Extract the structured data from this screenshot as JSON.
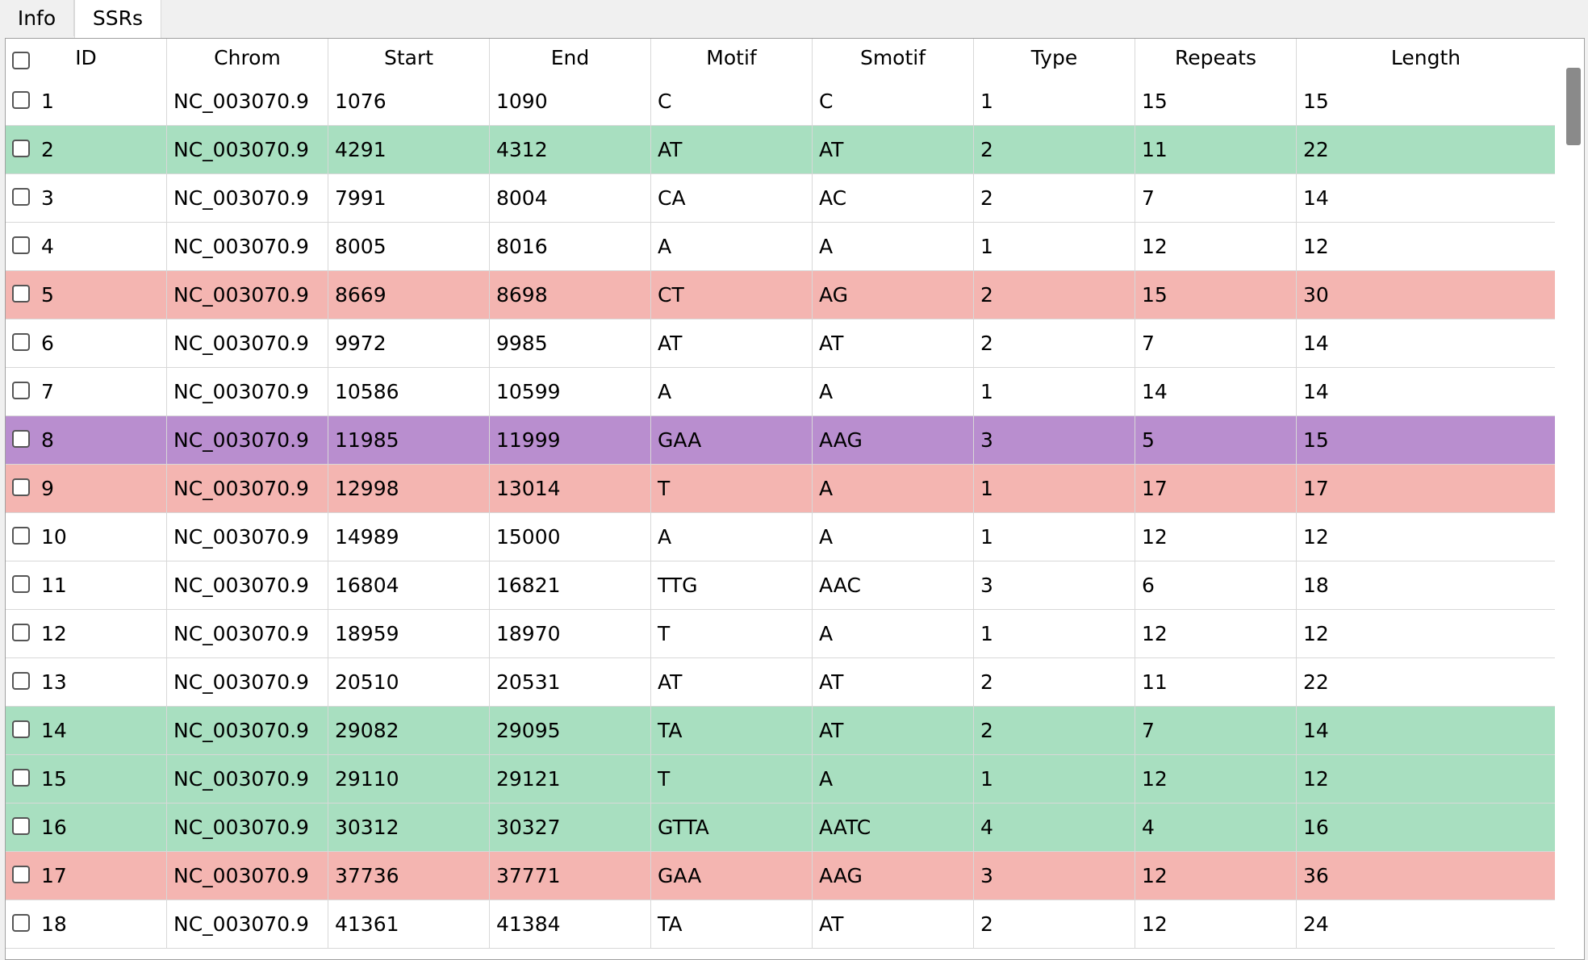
{
  "tabs": [
    {
      "label": "Info",
      "active": false
    },
    {
      "label": "SSRs",
      "active": true
    }
  ],
  "table": {
    "columns": [
      "ID",
      "Chrom",
      "Start",
      "End",
      "Motif",
      "Smotif",
      "Type",
      "Repeats",
      "Length"
    ],
    "sorted_column": "ID",
    "row_colors": {
      "white": "#ffffff",
      "green": "#a8dfc0",
      "red": "#f4b5b1",
      "purple": "#b98ecf"
    },
    "rows": [
      {
        "id": "1",
        "chrom": "NC_003070.9",
        "start": "1076",
        "end": "1090",
        "motif": "C",
        "smotif": "C",
        "type": "1",
        "repeats": "15",
        "length": "15",
        "color": "white"
      },
      {
        "id": "2",
        "chrom": "NC_003070.9",
        "start": "4291",
        "end": "4312",
        "motif": "AT",
        "smotif": "AT",
        "type": "2",
        "repeats": "11",
        "length": "22",
        "color": "green"
      },
      {
        "id": "3",
        "chrom": "NC_003070.9",
        "start": "7991",
        "end": "8004",
        "motif": "CA",
        "smotif": "AC",
        "type": "2",
        "repeats": "7",
        "length": "14",
        "color": "white"
      },
      {
        "id": "4",
        "chrom": "NC_003070.9",
        "start": "8005",
        "end": "8016",
        "motif": "A",
        "smotif": "A",
        "type": "1",
        "repeats": "12",
        "length": "12",
        "color": "white"
      },
      {
        "id": "5",
        "chrom": "NC_003070.9",
        "start": "8669",
        "end": "8698",
        "motif": "CT",
        "smotif": "AG",
        "type": "2",
        "repeats": "15",
        "length": "30",
        "color": "red"
      },
      {
        "id": "6",
        "chrom": "NC_003070.9",
        "start": "9972",
        "end": "9985",
        "motif": "AT",
        "smotif": "AT",
        "type": "2",
        "repeats": "7",
        "length": "14",
        "color": "white"
      },
      {
        "id": "7",
        "chrom": "NC_003070.9",
        "start": "10586",
        "end": "10599",
        "motif": "A",
        "smotif": "A",
        "type": "1",
        "repeats": "14",
        "length": "14",
        "color": "white"
      },
      {
        "id": "8",
        "chrom": "NC_003070.9",
        "start": "11985",
        "end": "11999",
        "motif": "GAA",
        "smotif": "AAG",
        "type": "3",
        "repeats": "5",
        "length": "15",
        "color": "purple"
      },
      {
        "id": "9",
        "chrom": "NC_003070.9",
        "start": "12998",
        "end": "13014",
        "motif": "T",
        "smotif": "A",
        "type": "1",
        "repeats": "17",
        "length": "17",
        "color": "red"
      },
      {
        "id": "10",
        "chrom": "NC_003070.9",
        "start": "14989",
        "end": "15000",
        "motif": "A",
        "smotif": "A",
        "type": "1",
        "repeats": "12",
        "length": "12",
        "color": "white"
      },
      {
        "id": "11",
        "chrom": "NC_003070.9",
        "start": "16804",
        "end": "16821",
        "motif": "TTG",
        "smotif": "AAC",
        "type": "3",
        "repeats": "6",
        "length": "18",
        "color": "white"
      },
      {
        "id": "12",
        "chrom": "NC_003070.9",
        "start": "18959",
        "end": "18970",
        "motif": "T",
        "smotif": "A",
        "type": "1",
        "repeats": "12",
        "length": "12",
        "color": "white"
      },
      {
        "id": "13",
        "chrom": "NC_003070.9",
        "start": "20510",
        "end": "20531",
        "motif": "AT",
        "smotif": "AT",
        "type": "2",
        "repeats": "11",
        "length": "22",
        "color": "white"
      },
      {
        "id": "14",
        "chrom": "NC_003070.9",
        "start": "29082",
        "end": "29095",
        "motif": "TA",
        "smotif": "AT",
        "type": "2",
        "repeats": "7",
        "length": "14",
        "color": "green"
      },
      {
        "id": "15",
        "chrom": "NC_003070.9",
        "start": "29110",
        "end": "29121",
        "motif": "T",
        "smotif": "A",
        "type": "1",
        "repeats": "12",
        "length": "12",
        "color": "green"
      },
      {
        "id": "16",
        "chrom": "NC_003070.9",
        "start": "30312",
        "end": "30327",
        "motif": "GTTA",
        "smotif": "AATC",
        "type": "4",
        "repeats": "4",
        "length": "16",
        "color": "green"
      },
      {
        "id": "17",
        "chrom": "NC_003070.9",
        "start": "37736",
        "end": "37771",
        "motif": "GAA",
        "smotif": "AAG",
        "type": "3",
        "repeats": "12",
        "length": "36",
        "color": "red"
      },
      {
        "id": "18",
        "chrom": "NC_003070.9",
        "start": "41361",
        "end": "41384",
        "motif": "TA",
        "smotif": "AT",
        "type": "2",
        "repeats": "12",
        "length": "24",
        "color": "white"
      }
    ]
  }
}
